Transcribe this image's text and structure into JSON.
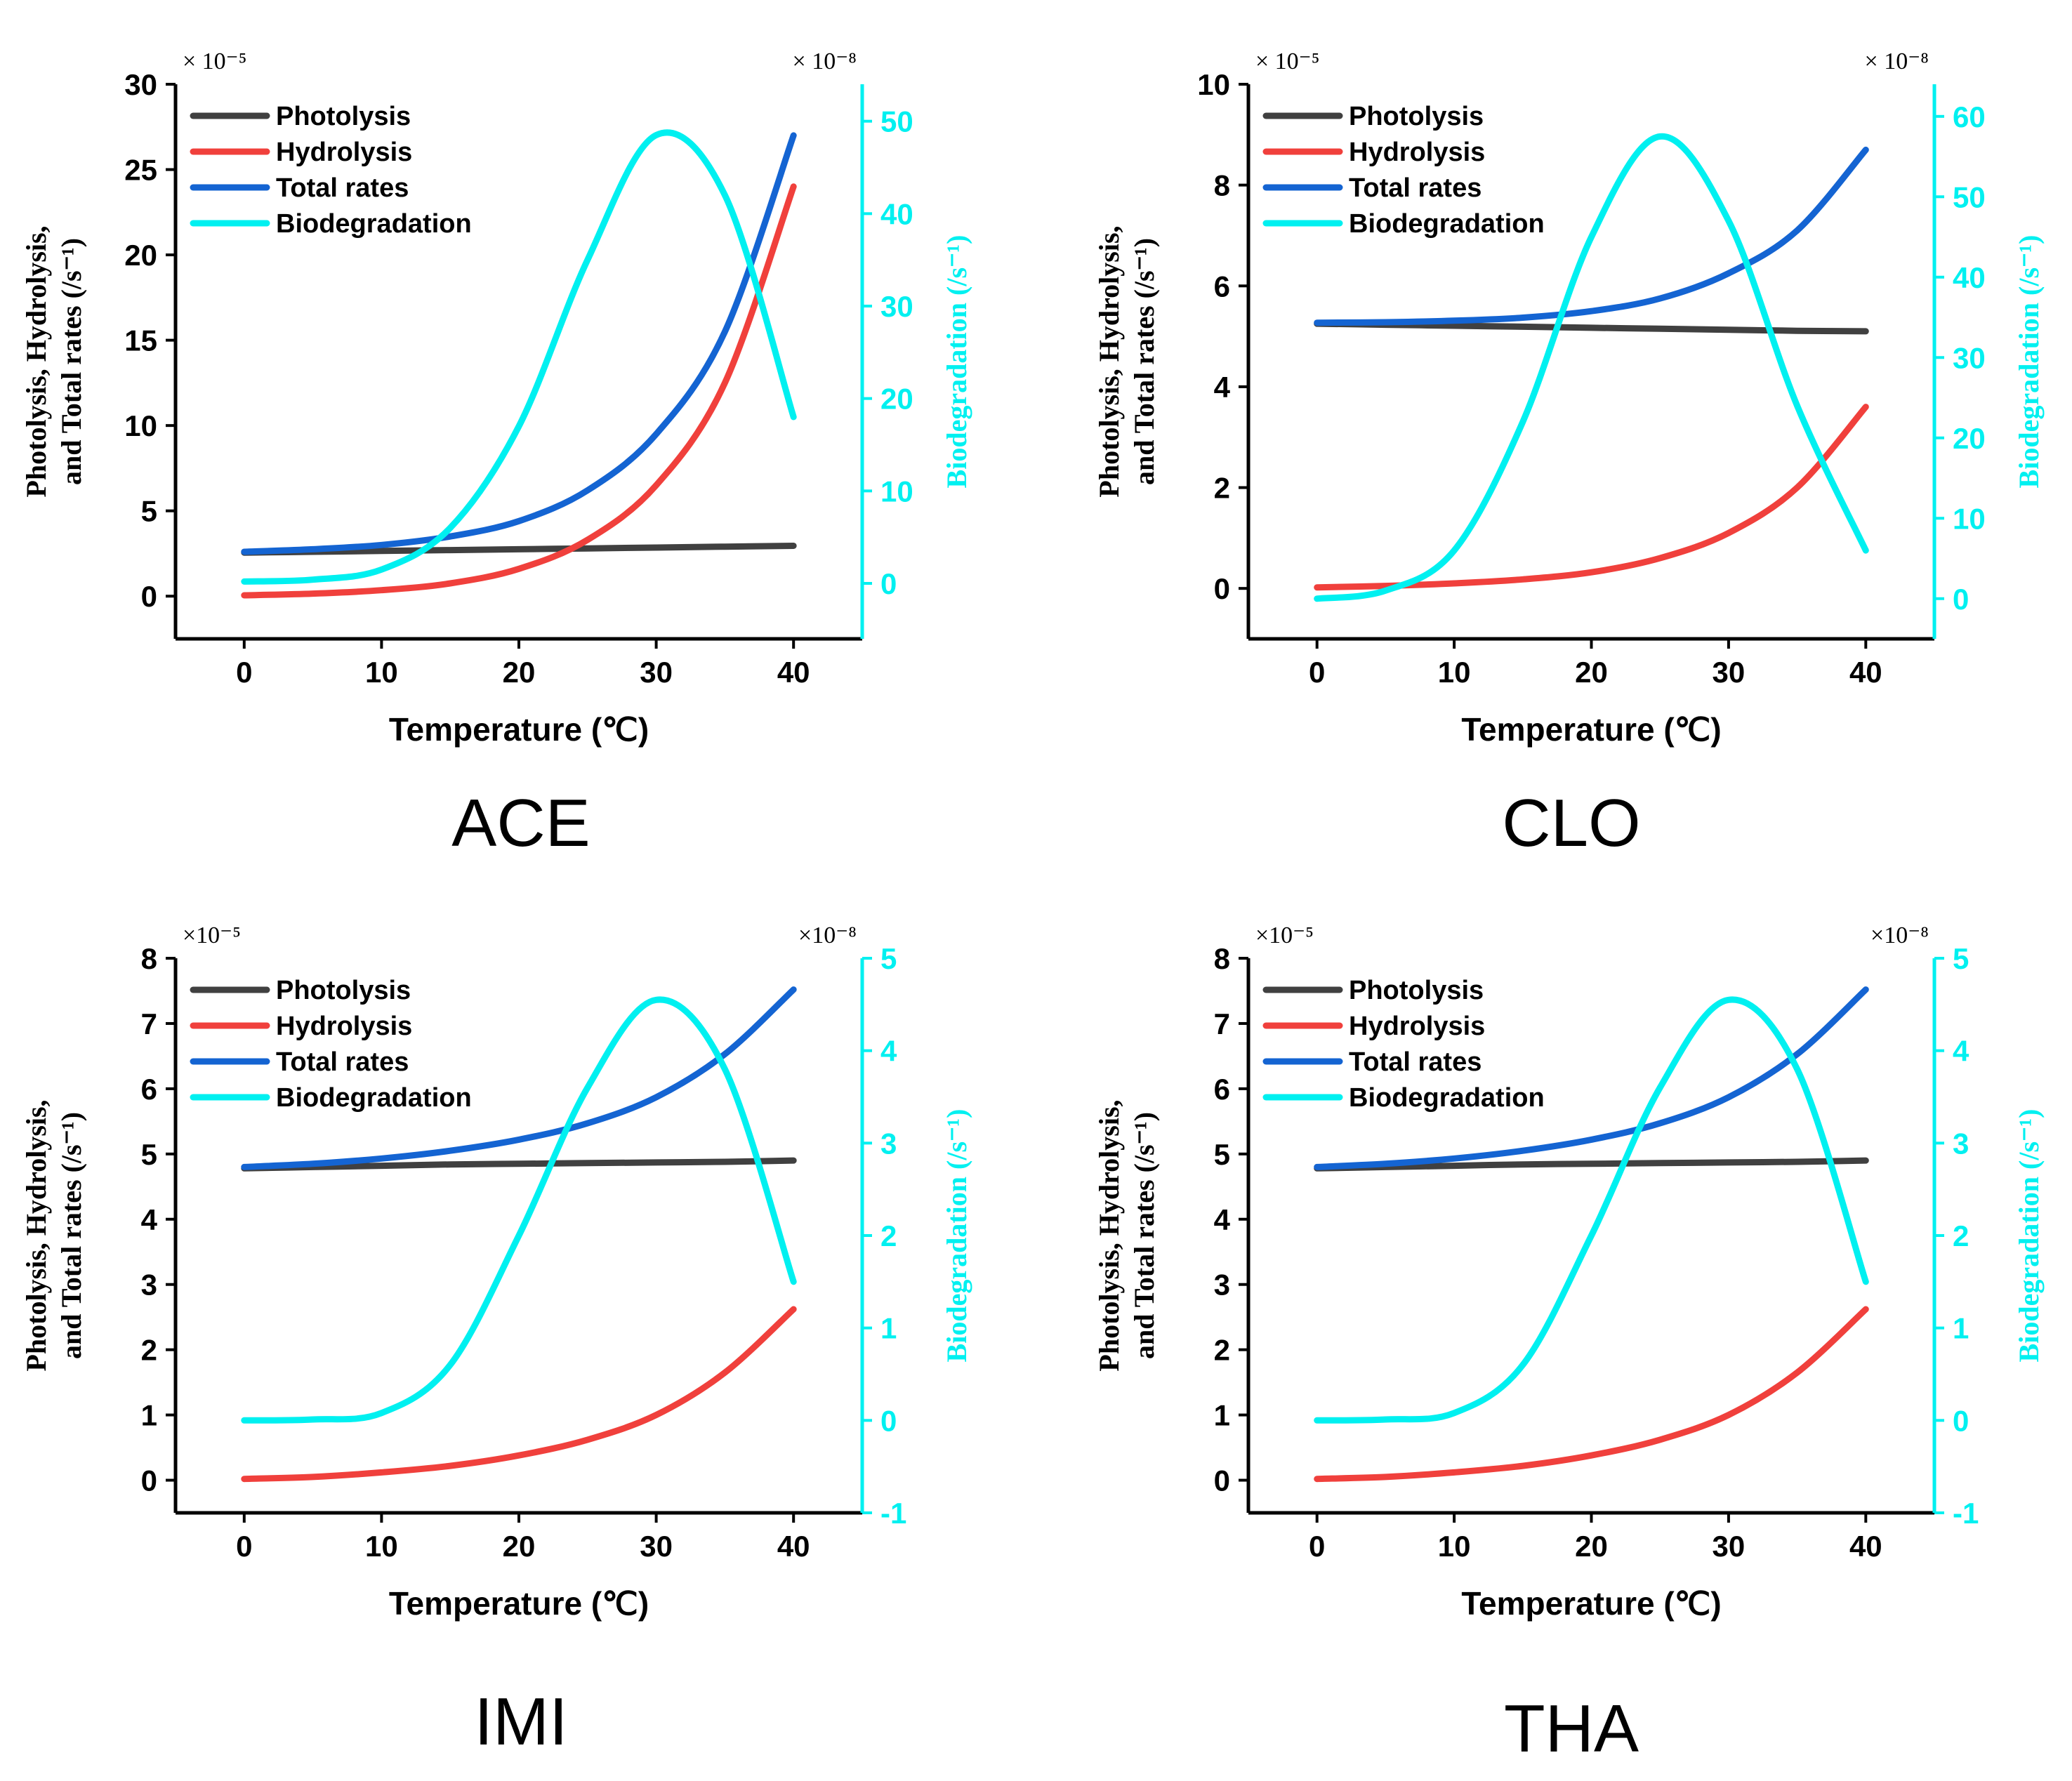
{
  "figure": {
    "colors": {
      "Photolysis": "#404040",
      "Hydrolysis": "#f0403c",
      "Total rates": "#1464d2",
      "Biodegradation": "#00f0f0"
    }
  },
  "chart_data": [
    {
      "type": "line",
      "title": "ACE",
      "xlabel": "Temperature (℃)",
      "ylabel_line1": "Photolysis, Hydrolysis,",
      "ylabel_line2": "and Total rates (/s⁻¹)",
      "y2label": "Biodegradation (/s⁻¹)",
      "y_multiplier": "× 10⁻⁵",
      "y2_multiplier": "× 10⁻⁸",
      "xlim": [
        -5,
        45
      ],
      "xticks": [
        0,
        10,
        20,
        30,
        40
      ],
      "ylim": [
        -2.5,
        30
      ],
      "yticks": [
        0,
        5,
        10,
        15,
        20,
        25,
        30
      ],
      "y2lim": [
        -6,
        54
      ],
      "y2ticks": [
        0,
        10,
        20,
        30,
        40,
        50
      ],
      "legend": [
        "Photolysis",
        "Hydrolysis",
        "Total rates",
        "Biodegradation"
      ],
      "x": [
        0,
        5,
        10,
        15,
        20,
        25,
        30,
        35,
        40
      ],
      "series": [
        {
          "name": "Photolysis",
          "axis": "left",
          "values": [
            2.55,
            2.6,
            2.65,
            2.7,
            2.75,
            2.8,
            2.85,
            2.9,
            2.95
          ]
        },
        {
          "name": "Hydrolysis",
          "axis": "left",
          "values": [
            0.05,
            0.15,
            0.35,
            0.75,
            1.6,
            3.3,
            6.5,
            12.5,
            24.0
          ]
        },
        {
          "name": "Total rates",
          "axis": "left",
          "values": [
            2.6,
            2.75,
            3.0,
            3.5,
            4.4,
            6.2,
            9.5,
            15.5,
            27.0
          ]
        },
        {
          "name": "Biodegradation",
          "axis": "right",
          "values": [
            0.2,
            0.4,
            1.5,
            6.0,
            17.0,
            35.0,
            48.5,
            42.0,
            18.0
          ]
        }
      ]
    },
    {
      "type": "line",
      "title": "CLO",
      "xlabel": "Temperature (℃)",
      "ylabel_line1": "Photolysis, Hydrolysis,",
      "ylabel_line2": "and Total rates (/s⁻¹)",
      "y2label": "Biodegradation (/s⁻¹)",
      "y_multiplier": "× 10⁻⁵",
      "y2_multiplier": "× 10⁻⁸",
      "xlim": [
        -5,
        45
      ],
      "xticks": [
        0,
        10,
        20,
        30,
        40
      ],
      "ylim": [
        -1,
        10
      ],
      "yticks": [
        0,
        2,
        4,
        6,
        8,
        10
      ],
      "y2lim": [
        -5,
        64
      ],
      "y2ticks": [
        0,
        10,
        20,
        30,
        40,
        50,
        60
      ],
      "legend": [
        "Photolysis",
        "Hydrolysis",
        "Total rates",
        "Biodegradation"
      ],
      "x": [
        0,
        5,
        10,
        15,
        20,
        25,
        30,
        35,
        40
      ],
      "series": [
        {
          "name": "Photolysis",
          "axis": "left",
          "values": [
            5.25,
            5.23,
            5.21,
            5.19,
            5.17,
            5.15,
            5.13,
            5.11,
            5.1
          ]
        },
        {
          "name": "Hydrolysis",
          "axis": "left",
          "values": [
            0.02,
            0.05,
            0.1,
            0.18,
            0.32,
            0.6,
            1.1,
            2.0,
            3.6
          ]
        },
        {
          "name": "Total rates",
          "axis": "left",
          "values": [
            5.27,
            5.28,
            5.31,
            5.37,
            5.5,
            5.75,
            6.25,
            7.1,
            8.7
          ]
        },
        {
          "name": "Biodegradation",
          "axis": "right",
          "values": [
            0.0,
            1.0,
            6.0,
            22.0,
            45.0,
            57.5,
            47.0,
            24.0,
            6.0
          ]
        }
      ]
    },
    {
      "type": "line",
      "title": "IMI",
      "xlabel": "Temperature (℃)",
      "ylabel_line1": "Photolysis, Hydrolysis,",
      "ylabel_line2": "and Total rates (/s⁻¹)",
      "y2label": "Biodegradation (/s⁻¹)",
      "y_multiplier": "×10⁻⁵",
      "y2_multiplier": "×10⁻⁸",
      "xlim": [
        -5,
        45
      ],
      "xticks": [
        0,
        10,
        20,
        30,
        40
      ],
      "ylim": [
        -0.5,
        8
      ],
      "yticks": [
        0,
        1,
        2,
        3,
        4,
        5,
        6,
        7,
        8
      ],
      "y2lim": [
        -1,
        5
      ],
      "y2ticks": [
        -1,
        0,
        1,
        2,
        3,
        4,
        5
      ],
      "legend": [
        "Photolysis",
        "Hydrolysis",
        "Total rates",
        "Biodegradation"
      ],
      "x": [
        0,
        5,
        10,
        15,
        20,
        25,
        30,
        35,
        40
      ],
      "series": [
        {
          "name": "Photolysis",
          "axis": "left",
          "values": [
            4.78,
            4.8,
            4.82,
            4.84,
            4.85,
            4.86,
            4.87,
            4.88,
            4.9
          ]
        },
        {
          "name": "Hydrolysis",
          "axis": "left",
          "values": [
            0.02,
            0.05,
            0.12,
            0.22,
            0.38,
            0.62,
            1.0,
            1.65,
            2.62
          ]
        },
        {
          "name": "Total rates",
          "axis": "left",
          "values": [
            4.8,
            4.85,
            4.93,
            5.05,
            5.22,
            5.47,
            5.87,
            6.53,
            7.52
          ]
        },
        {
          "name": "Biodegradation",
          "axis": "right",
          "values": [
            0.0,
            0.01,
            0.08,
            0.6,
            2.0,
            3.6,
            4.55,
            3.8,
            1.5
          ]
        }
      ]
    },
    {
      "type": "line",
      "title": "THA",
      "xlabel": "Temperature (℃)",
      "ylabel_line1": "Photolysis, Hydrolysis,",
      "ylabel_line2": "and Total rates (/s⁻¹)",
      "y2label": "Biodegradation (/s⁻¹)",
      "y_multiplier": "×10⁻⁵",
      "y2_multiplier": "×10⁻⁸",
      "xlim": [
        -5,
        45
      ],
      "xticks": [
        0,
        10,
        20,
        30,
        40
      ],
      "ylim": [
        -0.5,
        8
      ],
      "yticks": [
        0,
        1,
        2,
        3,
        4,
        5,
        6,
        7,
        8
      ],
      "y2lim": [
        -1,
        5
      ],
      "y2ticks": [
        -1,
        0,
        1,
        2,
        3,
        4,
        5
      ],
      "legend": [
        "Photolysis",
        "Hydrolysis",
        "Total rates",
        "Biodegradation"
      ],
      "x": [
        0,
        5,
        10,
        15,
        20,
        25,
        30,
        35,
        40
      ],
      "series": [
        {
          "name": "Photolysis",
          "axis": "left",
          "values": [
            4.78,
            4.8,
            4.82,
            4.84,
            4.85,
            4.86,
            4.87,
            4.88,
            4.9
          ]
        },
        {
          "name": "Hydrolysis",
          "axis": "left",
          "values": [
            0.02,
            0.05,
            0.12,
            0.22,
            0.38,
            0.62,
            1.0,
            1.65,
            2.62
          ]
        },
        {
          "name": "Total rates",
          "axis": "left",
          "values": [
            4.8,
            4.85,
            4.93,
            5.05,
            5.22,
            5.47,
            5.87,
            6.53,
            7.52
          ]
        },
        {
          "name": "Biodegradation",
          "axis": "right",
          "values": [
            0.0,
            0.01,
            0.08,
            0.6,
            2.0,
            3.6,
            4.55,
            3.8,
            1.5
          ]
        }
      ]
    }
  ]
}
